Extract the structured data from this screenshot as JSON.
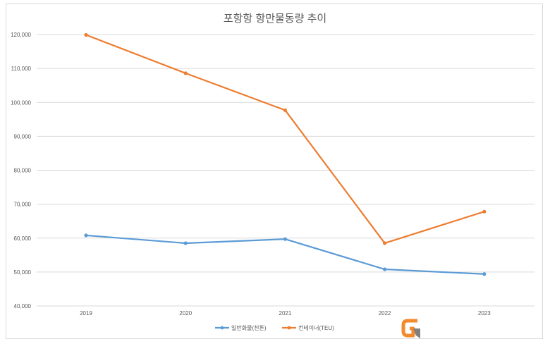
{
  "chart_data": {
    "type": "line",
    "title": "포항항 항만물동량 추이",
    "categories": [
      "2019",
      "2020",
      "2021",
      "2022",
      "2023"
    ],
    "series": [
      {
        "name": "일반화물(천톤)",
        "color": "#5b9bd5",
        "values": [
          60800,
          58500,
          59700,
          50800,
          49400
        ]
      },
      {
        "name": "컨테이너(TEU)",
        "color": "#ed7d31",
        "values": [
          119900,
          108600,
          97700,
          58500,
          67800
        ]
      }
    ],
    "ylim": [
      40000,
      120000
    ],
    "y_ticks": [
      "40,000",
      "50,000",
      "60,000",
      "70,000",
      "80,000",
      "90,000",
      "100,000",
      "110,000",
      "120,000"
    ],
    "grid": true,
    "legend": "bottom"
  },
  "logo": {
    "letter": "G",
    "name": "g-logo-icon"
  }
}
